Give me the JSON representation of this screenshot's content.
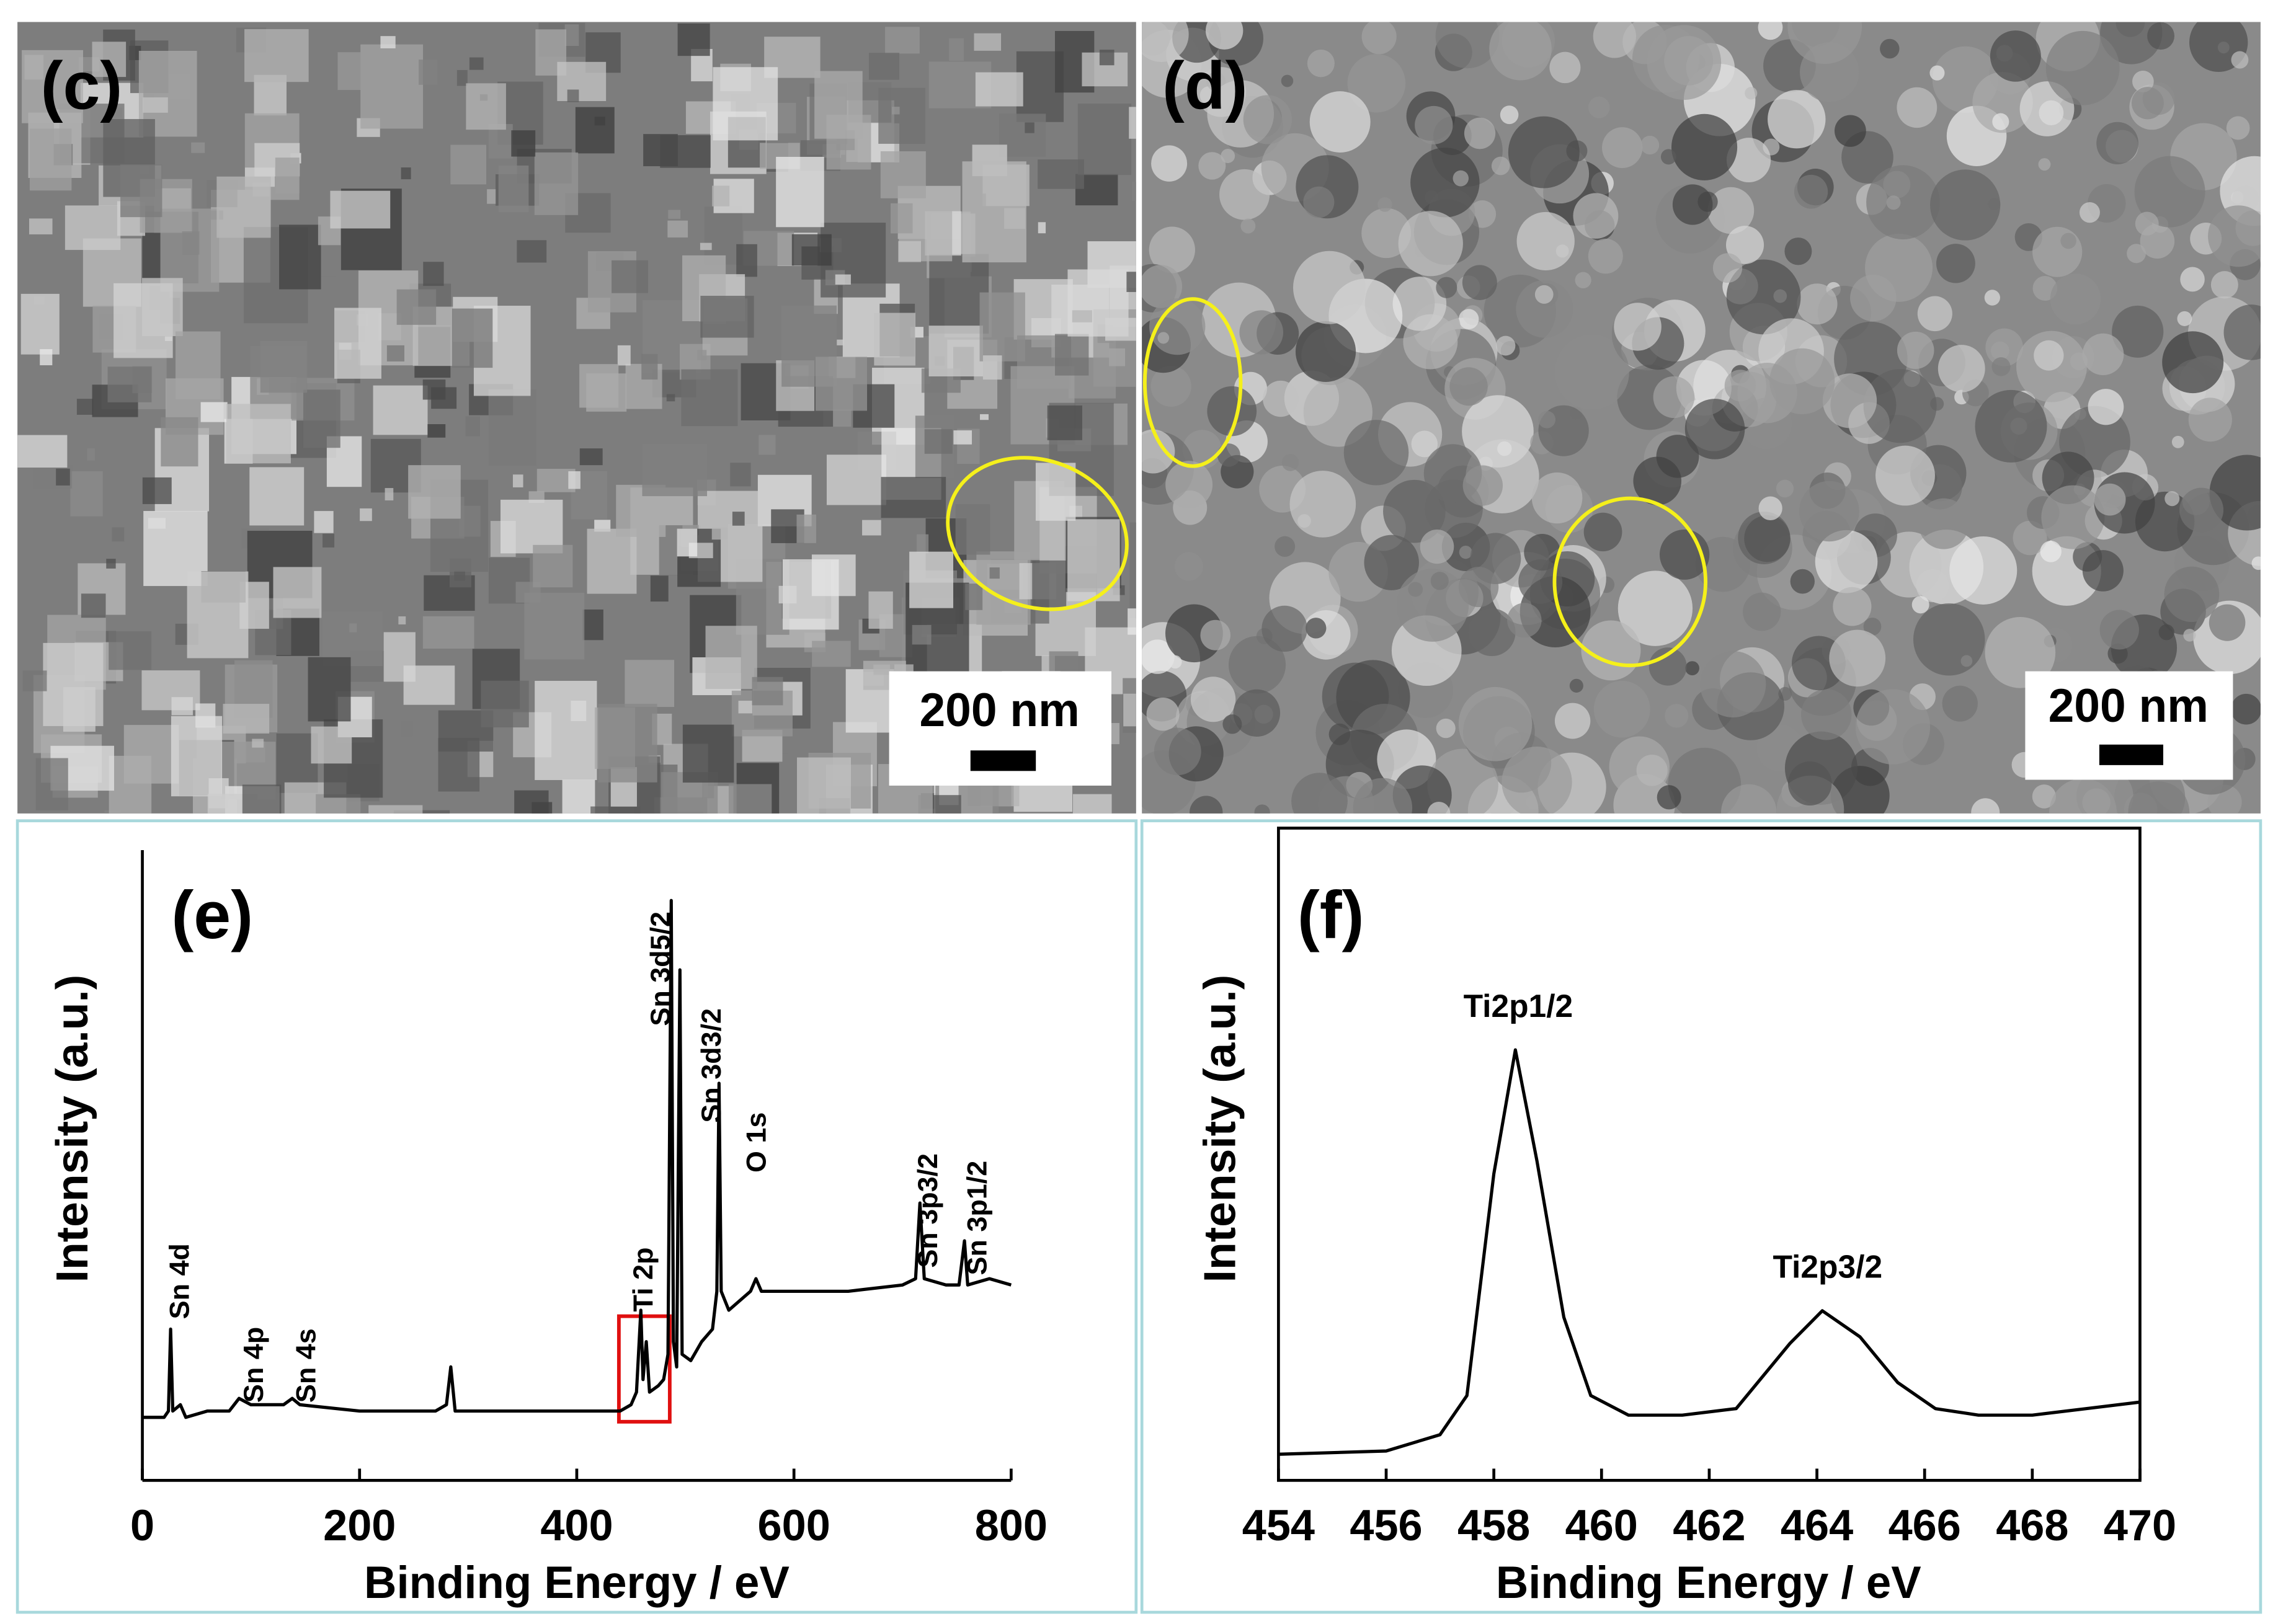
{
  "panels": [
    {
      "label": "(c)",
      "scale_bar": "200 nm"
    },
    {
      "label": "(d)",
      "scale_bar": "200 nm"
    }
  ],
  "chart_data": [
    {
      "type": "line",
      "title": "(e)",
      "x_label": "Binding Energy / eV",
      "y_label": "Intensity (a.u.)",
      "x": [
        0,
        20,
        24,
        26,
        28,
        35,
        40,
        60,
        80,
        89,
        100,
        130,
        138,
        145,
        200,
        270,
        280,
        284,
        288,
        300,
        400,
        440,
        450,
        455,
        459,
        461,
        464,
        467,
        475,
        480,
        484,
        487,
        489,
        492,
        495,
        497,
        505,
        515,
        525,
        529,
        531,
        533,
        540,
        560,
        565,
        570,
        600,
        650,
        700,
        712,
        716,
        720,
        740,
        752,
        757,
        760,
        780,
        800
      ],
      "values": [
        10,
        10,
        11,
        24,
        11,
        12,
        10,
        11,
        11,
        13,
        12,
        12,
        13,
        12,
        11,
        11,
        12,
        18,
        11,
        11,
        11,
        11,
        12,
        14,
        27,
        16,
        22,
        14,
        15,
        16,
        20,
        92,
        22,
        18,
        81,
        20,
        19,
        22,
        24,
        30,
        63,
        30,
        27,
        30,
        32,
        30,
        30,
        30,
        31,
        32,
        44,
        32,
        31,
        31,
        38,
        31,
        32,
        31
      ],
      "color": "#000000",
      "xlim": [
        0,
        800
      ],
      "xticks": [
        0,
        200,
        400,
        600,
        800
      ],
      "ylim": [
        0,
        100
      ],
      "frame": "axes",
      "annotations": [
        "Sn 4d",
        "Sn 4p",
        "Sn 4s",
        "Ti 2p",
        "Sn 3d5/2",
        "Sn 3d3/2",
        "O 1s",
        "Sn 3p3/2",
        "Sn 3p1/2"
      ]
    },
    {
      "type": "line",
      "title": "(f)",
      "x_label": "Binding Energy / eV",
      "y_label": "Intensity (a.u.)",
      "x": [
        454,
        456,
        457,
        457.5,
        458,
        458.4,
        458.8,
        459.3,
        459.8,
        460.5,
        461.5,
        462.5,
        463,
        463.5,
        464.1,
        464.8,
        465.5,
        466.2,
        467,
        468,
        469,
        470
      ],
      "values": [
        4,
        4.5,
        7,
        13,
        47,
        66,
        49,
        25,
        13,
        10,
        10,
        11,
        16,
        21,
        26,
        22,
        15,
        11,
        10,
        10,
        11,
        12
      ],
      "color": "#000000",
      "xlim": [
        454,
        470
      ],
      "xticks": [
        454,
        456,
        458,
        460,
        462,
        464,
        466,
        468,
        470
      ],
      "ylim": [
        0,
        100
      ],
      "frame": "box",
      "annotations": [
        "Ti2p1/2",
        "Ti2p3/2"
      ]
    }
  ]
}
